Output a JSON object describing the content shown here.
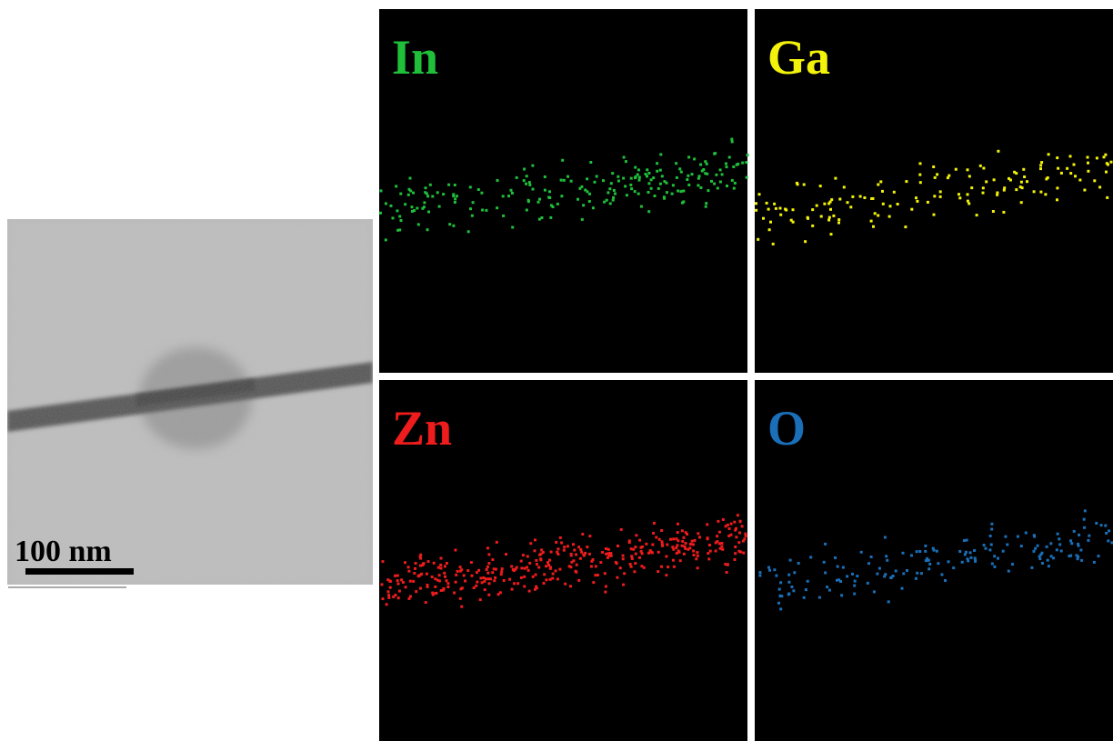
{
  "tem_image": {
    "scale_bar_label": "100 nm"
  },
  "maps": [
    {
      "label": "In",
      "color": "#1fbf3a"
    },
    {
      "label": "Ga",
      "color": "#f2f20a"
    },
    {
      "label": "Zn",
      "color": "#ee1c1c"
    },
    {
      "label": "O",
      "color": "#1a6fb8"
    }
  ]
}
